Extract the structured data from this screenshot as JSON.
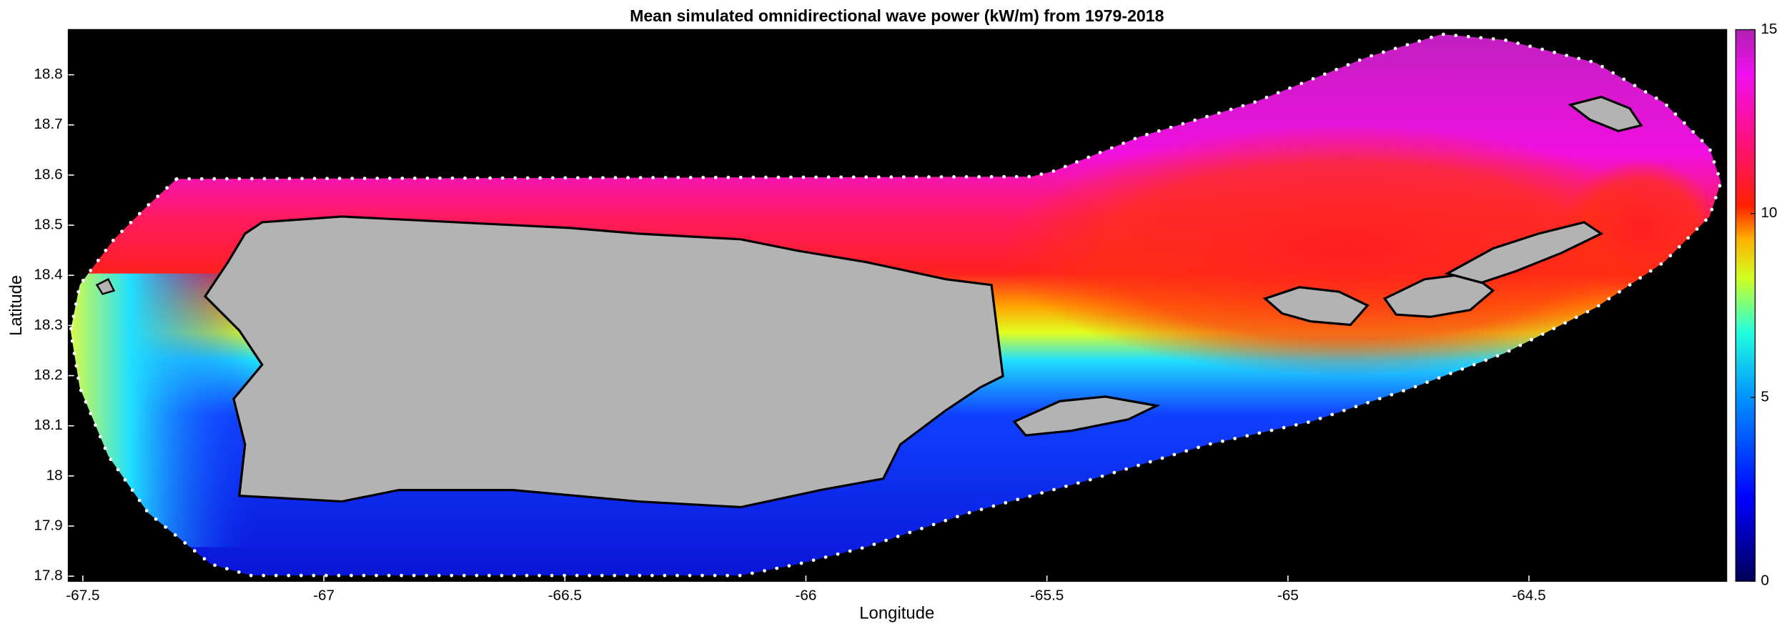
{
  "map": {
    "title": "Mean simulated omnidirectional wave power (kW/m) from 1979-2018",
    "xlabel": "Longitude",
    "ylabel": "Latitude",
    "xlim": [
      -67.53,
      -64.09
    ],
    "xticks": [
      -67.5,
      -67,
      -66.5,
      -66,
      -65.5,
      -65,
      -64.5
    ],
    "ylim": [
      17.79,
      18.89
    ],
    "yticks": [
      17.8,
      17.9,
      18,
      18.1,
      18.2,
      18.3,
      18.4,
      18.5,
      18.6,
      18.7,
      18.8
    ],
    "colorbar": {
      "lim": [
        0,
        15
      ],
      "ticks": [
        0,
        5,
        10,
        15
      ]
    }
  }
}
